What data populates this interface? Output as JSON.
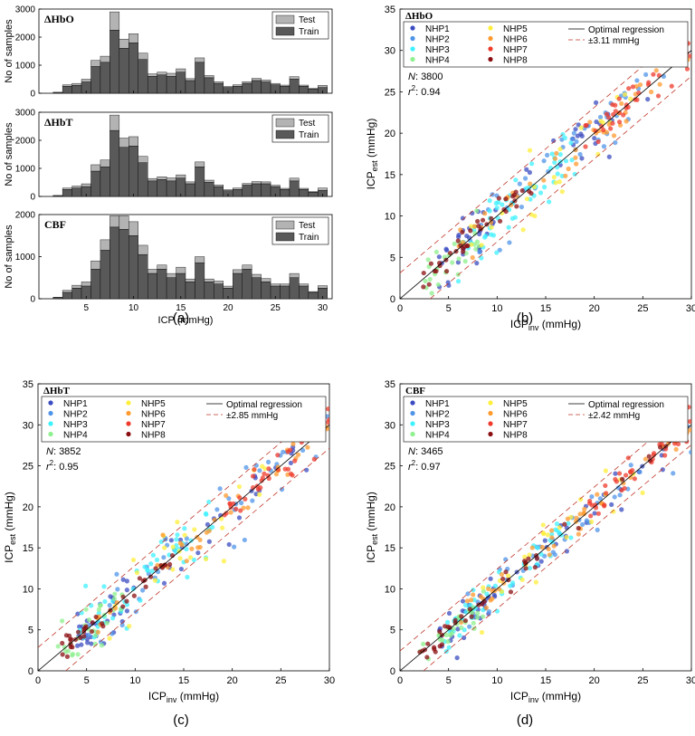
{
  "panel_letters": [
    "(a)",
    "(b)",
    "(c)",
    "(d)"
  ],
  "colors": {
    "test": "#b3b3b3",
    "train": "#595959",
    "NHP1": "#3b4cc0",
    "NHP2": "#4f94e8",
    "NHP3": "#3df2ff",
    "NHP4": "#8ef08e",
    "NHP5": "#ffef3a",
    "NHP6": "#ff9a2e",
    "NHP7": "#ef3b2c",
    "NHP8": "#8b0f12",
    "optimal_line": "#000000",
    "band_line": "#c0392b"
  },
  "chart_data": [
    {
      "type": "bar",
      "stacked": true,
      "panel": "(a)",
      "title": "ΔHbO",
      "xlabel": "",
      "ylabel": "No of samples",
      "xlim": [
        0,
        31
      ],
      "ylim": [
        0,
        3000
      ],
      "x_ticks": [
        5,
        10,
        15,
        20,
        25,
        30
      ],
      "y_ticks": [
        0,
        1000,
        2000,
        3000
      ],
      "x_tick_labels": false,
      "legend": "top-right",
      "bin_width": 1,
      "x": [
        2,
        3,
        4,
        5,
        6,
        7,
        8,
        9,
        10,
        11,
        12,
        13,
        14,
        15,
        16,
        17,
        18,
        19,
        20,
        21,
        22,
        23,
        24,
        25,
        26,
        27,
        28,
        29,
        30
      ],
      "series": [
        {
          "name": "Train",
          "values": [
            30,
            250,
            280,
            400,
            950,
            1100,
            2250,
            1600,
            1800,
            1200,
            600,
            650,
            600,
            750,
            450,
            1100,
            550,
            350,
            200,
            250,
            350,
            450,
            400,
            300,
            250,
            500,
            250,
            150,
            200
          ]
        },
        {
          "name": "Test",
          "values": [
            5,
            50,
            70,
            100,
            220,
            220,
            650,
            330,
            320,
            230,
            90,
            100,
            110,
            120,
            70,
            160,
            80,
            60,
            40,
            50,
            60,
            80,
            70,
            50,
            40,
            90,
            40,
            20,
            80
          ]
        }
      ]
    },
    {
      "type": "bar",
      "stacked": true,
      "panel": "(a)",
      "title": "ΔHbT",
      "xlabel": "",
      "ylabel": "No of samples",
      "xlim": [
        0,
        31
      ],
      "ylim": [
        0,
        3000
      ],
      "x_ticks": [
        5,
        10,
        15,
        20,
        25,
        30
      ],
      "y_ticks": [
        0,
        1000,
        2000,
        3000
      ],
      "x_tick_labels": false,
      "legend": "top-right",
      "bin_width": 1,
      "x": [
        2,
        3,
        4,
        5,
        6,
        7,
        8,
        9,
        10,
        11,
        12,
        13,
        14,
        15,
        16,
        17,
        18,
        19,
        20,
        21,
        22,
        23,
        24,
        25,
        26,
        27,
        28,
        29,
        30
      ],
      "series": [
        {
          "name": "Train",
          "values": [
            30,
            250,
            300,
            350,
            900,
            1050,
            2350,
            1750,
            1800,
            1200,
            550,
            600,
            550,
            650,
            450,
            1050,
            500,
            350,
            200,
            250,
            400,
            450,
            450,
            350,
            250,
            550,
            250,
            150,
            220
          ]
        },
        {
          "name": "Test",
          "values": [
            5,
            50,
            70,
            100,
            230,
            250,
            550,
            330,
            330,
            230,
            90,
            100,
            110,
            120,
            70,
            180,
            80,
            60,
            40,
            50,
            60,
            80,
            70,
            50,
            40,
            100,
            40,
            20,
            80
          ]
        }
      ]
    },
    {
      "type": "bar",
      "stacked": true,
      "panel": "(a)",
      "title": "CBF",
      "xlabel": "ICP (mmHg)",
      "ylabel": "No of samples",
      "xlim": [
        0,
        31
      ],
      "ylim": [
        0,
        2000
      ],
      "x_ticks": [
        5,
        10,
        15,
        20,
        25,
        30
      ],
      "y_ticks": [
        0,
        1000,
        2000
      ],
      "x_tick_labels": true,
      "legend": "top-right",
      "bin_width": 1,
      "x": [
        2,
        3,
        4,
        5,
        6,
        7,
        8,
        9,
        10,
        11,
        12,
        13,
        14,
        15,
        16,
        17,
        18,
        19,
        20,
        21,
        22,
        23,
        24,
        25,
        26,
        27,
        28,
        29,
        30
      ],
      "series": [
        {
          "name": "Train",
          "values": [
            30,
            150,
            250,
            300,
            700,
            1150,
            1700,
            1650,
            1500,
            1050,
            600,
            700,
            500,
            600,
            400,
            850,
            400,
            350,
            250,
            600,
            700,
            500,
            400,
            300,
            300,
            500,
            300,
            150,
            250
          ]
        },
        {
          "name": "Test",
          "values": [
            5,
            50,
            70,
            100,
            200,
            250,
            270,
            320,
            330,
            220,
            100,
            100,
            100,
            150,
            70,
            150,
            70,
            70,
            50,
            90,
            100,
            80,
            80,
            50,
            50,
            100,
            50,
            20,
            60
          ]
        }
      ]
    },
    {
      "type": "scatter",
      "panel": "(b)",
      "title": "ΔHbO",
      "xlabel_main": "ICP",
      "xlabel_sub": "inv",
      "xlabel_unit": " (mmHg)",
      "ylabel_main": "ICP",
      "ylabel_sub": "est",
      "ylabel_unit": " (mmHg)",
      "xlim": [
        0,
        30
      ],
      "ylim": [
        0,
        35
      ],
      "x_ticks": [
        0,
        5,
        10,
        15,
        20,
        25,
        30
      ],
      "y_ticks": [
        0,
        5,
        10,
        15,
        20,
        25,
        30,
        35
      ],
      "legend": "top-right",
      "legend_entries": [
        "NHP1",
        "NHP2",
        "NHP3",
        "NHP4",
        "NHP5",
        "NHP6",
        "NHP7",
        "NHP8"
      ],
      "optimal_label": "Optimal regression",
      "band": 3.11,
      "band_label": "±3.11 mmHg",
      "n_label": "N",
      "n_value": ": 3800",
      "r2_label": "r",
      "r2_value": ": 0.94",
      "points": [
        {
          "nhp": "NHP1",
          "xr": [
            4,
            10
          ],
          "n": 30,
          "sd": 2.0
        },
        {
          "nhp": "NHP1",
          "xr": [
            12,
            28
          ],
          "n": 25,
          "sd": 2.0
        },
        {
          "nhp": "NHP2",
          "xr": [
            5,
            30
          ],
          "n": 50,
          "sd": 2.2
        },
        {
          "nhp": "NHP3",
          "xr": [
            6,
            18
          ],
          "n": 55,
          "sd": 1.8
        },
        {
          "nhp": "NHP4",
          "xr": [
            2,
            9
          ],
          "n": 28,
          "sd": 1.6
        },
        {
          "nhp": "NHP5",
          "xr": [
            7,
            24
          ],
          "n": 25,
          "sd": 2.0
        },
        {
          "nhp": "NHP6",
          "xr": [
            6,
            30
          ],
          "n": 45,
          "sd": 1.3
        },
        {
          "nhp": "NHP7",
          "xr": [
            19,
            30
          ],
          "n": 45,
          "sd": 1.2
        },
        {
          "nhp": "NHP8",
          "xr": [
            2,
            14
          ],
          "n": 40,
          "sd": 0.8
        }
      ]
    },
    {
      "type": "scatter",
      "panel": "(c)",
      "title": "ΔHbT",
      "xlabel_main": "ICP",
      "xlabel_sub": "inv",
      "xlabel_unit": " (mmHg)",
      "ylabel_main": "ICP",
      "ylabel_sub": "est",
      "ylabel_unit": " (mmHg)",
      "xlim": [
        0,
        30
      ],
      "ylim": [
        0,
        35
      ],
      "x_ticks": [
        0,
        5,
        10,
        15,
        20,
        25,
        30
      ],
      "y_ticks": [
        0,
        5,
        10,
        15,
        20,
        25,
        30,
        35
      ],
      "legend": "top-right",
      "legend_entries": [
        "NHP1",
        "NHP2",
        "NHP3",
        "NHP4",
        "NHP5",
        "NHP6",
        "NHP7",
        "NHP8"
      ],
      "optimal_label": "Optimal regression",
      "band": 2.85,
      "band_label": "±2.85 mmHg",
      "n_label": "N",
      "n_value": ": 3852",
      "r2_label": "r",
      "r2_value": ": 0.95",
      "points": [
        {
          "nhp": "NHP1",
          "xr": [
            4,
            10
          ],
          "n": 30,
          "sd": 1.8
        },
        {
          "nhp": "NHP1",
          "xr": [
            12,
            28
          ],
          "n": 25,
          "sd": 1.8
        },
        {
          "nhp": "NHP2",
          "xr": [
            5,
            30
          ],
          "n": 50,
          "sd": 2.0
        },
        {
          "nhp": "NHP3",
          "xr": [
            4,
            18
          ],
          "n": 55,
          "sd": 1.7
        },
        {
          "nhp": "NHP4",
          "xr": [
            2,
            9
          ],
          "n": 28,
          "sd": 1.5
        },
        {
          "nhp": "NHP5",
          "xr": [
            7,
            24
          ],
          "n": 25,
          "sd": 1.9
        },
        {
          "nhp": "NHP6",
          "xr": [
            6,
            30
          ],
          "n": 45,
          "sd": 1.2
        },
        {
          "nhp": "NHP7",
          "xr": [
            19,
            30
          ],
          "n": 45,
          "sd": 1.1
        },
        {
          "nhp": "NHP8",
          "xr": [
            2,
            14
          ],
          "n": 40,
          "sd": 0.7
        }
      ]
    },
    {
      "type": "scatter",
      "panel": "(d)",
      "title": "CBF",
      "xlabel_main": "ICP",
      "xlabel_sub": "inv",
      "xlabel_unit": " (mmHg)",
      "ylabel_main": "ICP",
      "ylabel_sub": "est",
      "ylabel_unit": " (mmHg)",
      "xlim": [
        0,
        30
      ],
      "ylim": [
        0,
        35
      ],
      "x_ticks": [
        0,
        5,
        10,
        15,
        20,
        25,
        30
      ],
      "y_ticks": [
        0,
        5,
        10,
        15,
        20,
        25,
        30,
        35
      ],
      "legend": "top-right",
      "legend_entries": [
        "NHP1",
        "NHP2",
        "NHP3",
        "NHP4",
        "NHP5",
        "NHP6",
        "NHP7",
        "NHP8"
      ],
      "optimal_label": "Optimal regression",
      "band": 2.42,
      "band_label": "±2.42 mmHg",
      "n_label": "N",
      "n_value": ": 3465",
      "r2_label": "r",
      "r2_value": ": 0.97",
      "points": [
        {
          "nhp": "NHP1",
          "xr": [
            4,
            10
          ],
          "n": 30,
          "sd": 1.5
        },
        {
          "nhp": "NHP1",
          "xr": [
            12,
            28
          ],
          "n": 25,
          "sd": 1.5
        },
        {
          "nhp": "NHP2",
          "xr": [
            5,
            30
          ],
          "n": 50,
          "sd": 1.7
        },
        {
          "nhp": "NHP3",
          "xr": [
            4,
            18
          ],
          "n": 55,
          "sd": 1.4
        },
        {
          "nhp": "NHP4",
          "xr": [
            2,
            9
          ],
          "n": 28,
          "sd": 1.2
        },
        {
          "nhp": "NHP5",
          "xr": [
            7,
            26
          ],
          "n": 25,
          "sd": 1.8
        },
        {
          "nhp": "NHP6",
          "xr": [
            6,
            30
          ],
          "n": 45,
          "sd": 1.0
        },
        {
          "nhp": "NHP7",
          "xr": [
            19,
            30
          ],
          "n": 40,
          "sd": 1.0
        },
        {
          "nhp": "NHP8",
          "xr": [
            2,
            28
          ],
          "n": 45,
          "sd": 0.6
        }
      ]
    }
  ]
}
